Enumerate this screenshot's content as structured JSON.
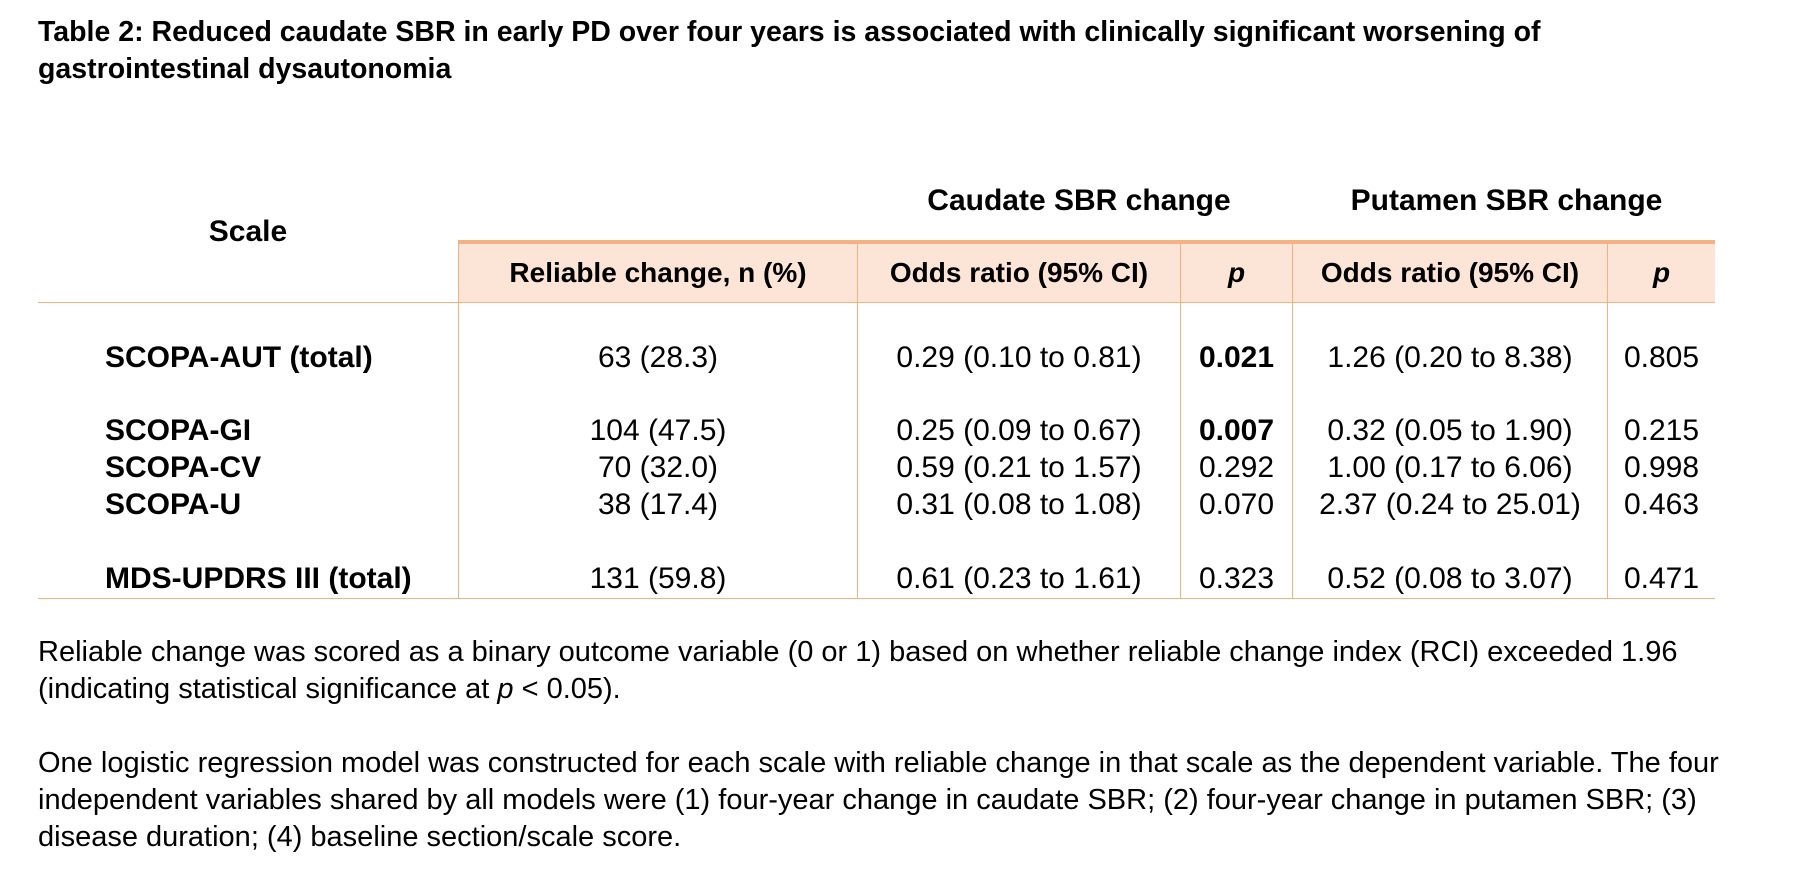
{
  "title": "Table 2: Reduced caudate SBR in early PD over four years is associated with clinically significant worsening of gastrointestinal dysautonomia",
  "table": {
    "scale_header": "Scale",
    "group_headers": [
      "Caudate SBR change",
      "Putamen SBR change"
    ],
    "columns": [
      "Reliable change, n (%)",
      "Odds ratio (95% CI)",
      "p",
      "Odds ratio (95% CI)",
      "p"
    ],
    "rows": [
      {
        "scale": "SCOPA-AUT (total)",
        "reliable": "63 (28.3)",
        "caudate_or": "0.29 (0.10 to 0.81)",
        "caudate_p": "0.021",
        "caudate_p_bold": true,
        "putamen_or": "1.26 (0.20 to 8.38)",
        "putamen_p": "0.805"
      },
      {
        "scale": "SCOPA-GI",
        "reliable": "104 (47.5)",
        "caudate_or": "0.25 (0.09 to 0.67)",
        "caudate_p": "0.007",
        "caudate_p_bold": true,
        "putamen_or": "0.32 (0.05 to 1.90)",
        "putamen_p": "0.215"
      },
      {
        "scale": "SCOPA-CV",
        "reliable": "70 (32.0)",
        "caudate_or": "0.59 (0.21 to 1.57)",
        "caudate_p": "0.292",
        "caudate_p_bold": false,
        "putamen_or": "1.00 (0.17 to 6.06)",
        "putamen_p": "0.998"
      },
      {
        "scale": "SCOPA-U",
        "reliable": "38 (17.4)",
        "caudate_or": "0.31 (0.08 to 1.08)",
        "caudate_p": "0.070",
        "caudate_p_bold": false,
        "putamen_or": "2.37 (0.24 to 25.01)",
        "putamen_p": "0.463"
      },
      {
        "scale": "MDS-UPDRS III (total)",
        "reliable": "131 (59.8)",
        "caudate_or": "0.61 (0.23 to 1.61)",
        "caudate_p": "0.323",
        "caudate_p_bold": false,
        "putamen_or": "0.52 (0.08 to 3.07)",
        "putamen_p": "0.471"
      }
    ]
  },
  "notes": {
    "note1_part1": "Reliable change was scored as a binary outcome variable (0 or 1) based on whether reliable change index (RCI) exceeded 1.96 (indicating statistical significance at ",
    "note1_p": "p",
    "note1_part2": " < 0.05).",
    "note2": "One logistic regression model was constructed for each scale with reliable change in that scale as the dependent variable. The four independent variables shared by all models were (1) four-year change in caudate SBR; (2) four-year change in putamen SBR; (3) disease duration; (4) baseline section/scale score."
  },
  "colors": {
    "header_band": "#fce4d6",
    "rule": "#f4b183"
  }
}
